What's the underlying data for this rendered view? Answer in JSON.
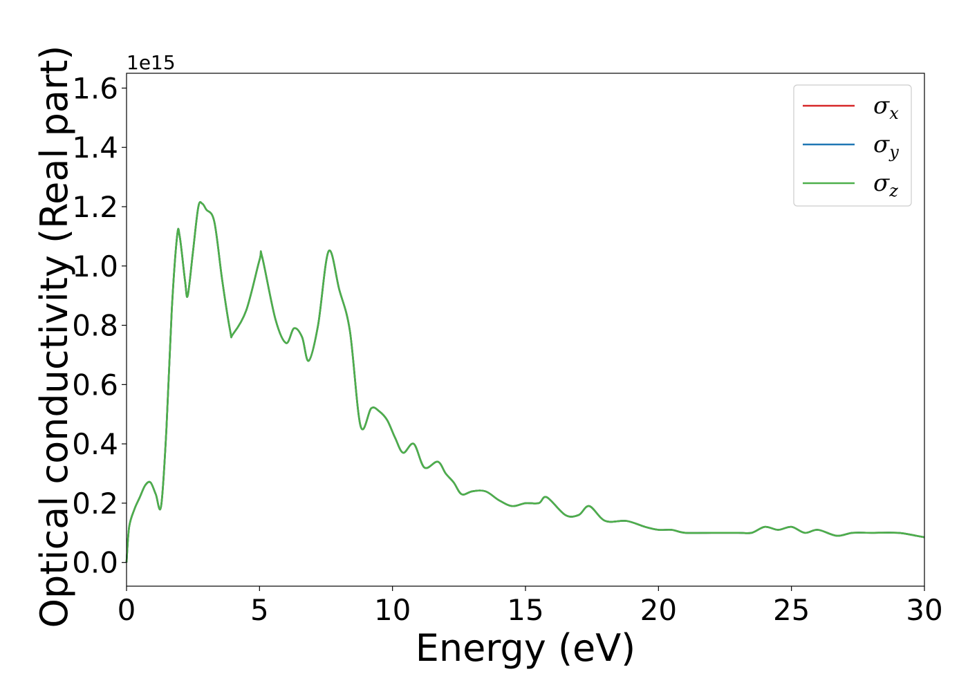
{
  "chart_data": {
    "type": "line",
    "title": "",
    "xlabel": "Energy (eV)",
    "ylabel": "Optical conductivity (Real part)",
    "y_offset_label": "1e15",
    "xlim": [
      0,
      30
    ],
    "ylim": [
      -0.08,
      1.65
    ],
    "x_ticks": [
      0,
      5,
      10,
      15,
      20,
      25,
      30
    ],
    "x_tick_labels": [
      "0",
      "5",
      "10",
      "15",
      "20",
      "25",
      "30"
    ],
    "y_ticks": [
      0.0,
      0.2,
      0.4,
      0.6,
      0.8,
      1.0,
      1.2,
      1.4,
      1.6
    ],
    "y_tick_labels": [
      "0.0",
      "0.2",
      "0.4",
      "0.6",
      "0.8",
      "1.0",
      "1.2",
      "1.4",
      "1.6"
    ],
    "grid": false,
    "legend_position": "top-right",
    "x": [
      0,
      0.1,
      0.3,
      0.5,
      0.7,
      0.9,
      1.1,
      1.3,
      1.5,
      1.7,
      1.9,
      2.0,
      2.2,
      2.3,
      2.5,
      2.7,
      2.85,
      3.0,
      3.3,
      3.6,
      3.9,
      4.0,
      4.5,
      5.0,
      5.1,
      5.6,
      6.0,
      6.3,
      6.6,
      6.85,
      7.2,
      7.6,
      8.0,
      8.4,
      8.8,
      9.2,
      9.5,
      9.8,
      10.1,
      10.4,
      10.8,
      11.2,
      11.7,
      12.0,
      12.3,
      12.6,
      13.0,
      13.5,
      14.0,
      14.5,
      15.0,
      15.5,
      15.8,
      16.5,
      17.0,
      17.4,
      18.0,
      18.8,
      19.5,
      20.0,
      20.5,
      21.0,
      22.0,
      23.0,
      23.5,
      24.0,
      24.5,
      25.0,
      25.5,
      26.0,
      26.7,
      27.3,
      28.0,
      29.0,
      29.7,
      30.0
    ],
    "series": [
      {
        "name": "σ_x",
        "color": "#d62728",
        "values": [
          0.0,
          0.12,
          0.18,
          0.22,
          0.26,
          0.27,
          0.23,
          0.19,
          0.45,
          0.85,
          1.1,
          1.1,
          0.95,
          0.9,
          1.05,
          1.2,
          1.21,
          1.19,
          1.15,
          0.95,
          0.78,
          0.77,
          0.85,
          1.02,
          1.03,
          0.82,
          0.74,
          0.79,
          0.76,
          0.68,
          0.8,
          1.05,
          0.92,
          0.78,
          0.46,
          0.52,
          0.51,
          0.48,
          0.42,
          0.37,
          0.4,
          0.32,
          0.34,
          0.3,
          0.27,
          0.23,
          0.24,
          0.24,
          0.21,
          0.19,
          0.2,
          0.2,
          0.22,
          0.16,
          0.16,
          0.19,
          0.14,
          0.14,
          0.12,
          0.11,
          0.11,
          0.1,
          0.1,
          0.1,
          0.1,
          0.12,
          0.11,
          0.12,
          0.1,
          0.11,
          0.09,
          0.1,
          0.1,
          0.1,
          0.09,
          0.085
        ]
      },
      {
        "name": "σ_y",
        "color": "#1f77b4",
        "values": [
          0.0,
          0.12,
          0.18,
          0.22,
          0.26,
          0.27,
          0.23,
          0.19,
          0.45,
          0.85,
          1.1,
          1.1,
          0.95,
          0.9,
          1.05,
          1.2,
          1.21,
          1.19,
          1.15,
          0.95,
          0.78,
          0.77,
          0.85,
          1.02,
          1.03,
          0.82,
          0.74,
          0.79,
          0.76,
          0.68,
          0.8,
          1.05,
          0.92,
          0.78,
          0.46,
          0.52,
          0.51,
          0.48,
          0.42,
          0.37,
          0.4,
          0.32,
          0.34,
          0.3,
          0.27,
          0.23,
          0.24,
          0.24,
          0.21,
          0.19,
          0.2,
          0.2,
          0.22,
          0.16,
          0.16,
          0.19,
          0.14,
          0.14,
          0.12,
          0.11,
          0.11,
          0.1,
          0.1,
          0.1,
          0.1,
          0.12,
          0.11,
          0.12,
          0.1,
          0.11,
          0.09,
          0.1,
          0.1,
          0.1,
          0.09,
          0.085
        ]
      },
      {
        "name": "σ_z",
        "color": "#4daf4a",
        "values": [
          0.0,
          0.12,
          0.18,
          0.22,
          0.26,
          0.27,
          0.23,
          0.19,
          0.45,
          0.85,
          1.1,
          1.1,
          0.95,
          0.9,
          1.05,
          1.2,
          1.21,
          1.19,
          1.15,
          0.95,
          0.78,
          0.77,
          0.85,
          1.02,
          1.03,
          0.82,
          0.74,
          0.79,
          0.76,
          0.68,
          0.8,
          1.05,
          0.92,
          0.78,
          0.46,
          0.52,
          0.51,
          0.48,
          0.42,
          0.37,
          0.4,
          0.32,
          0.34,
          0.3,
          0.27,
          0.23,
          0.24,
          0.24,
          0.21,
          0.19,
          0.2,
          0.2,
          0.22,
          0.16,
          0.16,
          0.19,
          0.14,
          0.14,
          0.12,
          0.11,
          0.11,
          0.1,
          0.1,
          0.1,
          0.1,
          0.12,
          0.11,
          0.12,
          0.1,
          0.11,
          0.09,
          0.1,
          0.1,
          0.1,
          0.09,
          0.085
        ]
      }
    ],
    "legend": [
      {
        "symbol": "σ",
        "subscript": "x"
      },
      {
        "symbol": "σ",
        "subscript": "y"
      },
      {
        "symbol": "σ",
        "subscript": "z"
      }
    ]
  }
}
